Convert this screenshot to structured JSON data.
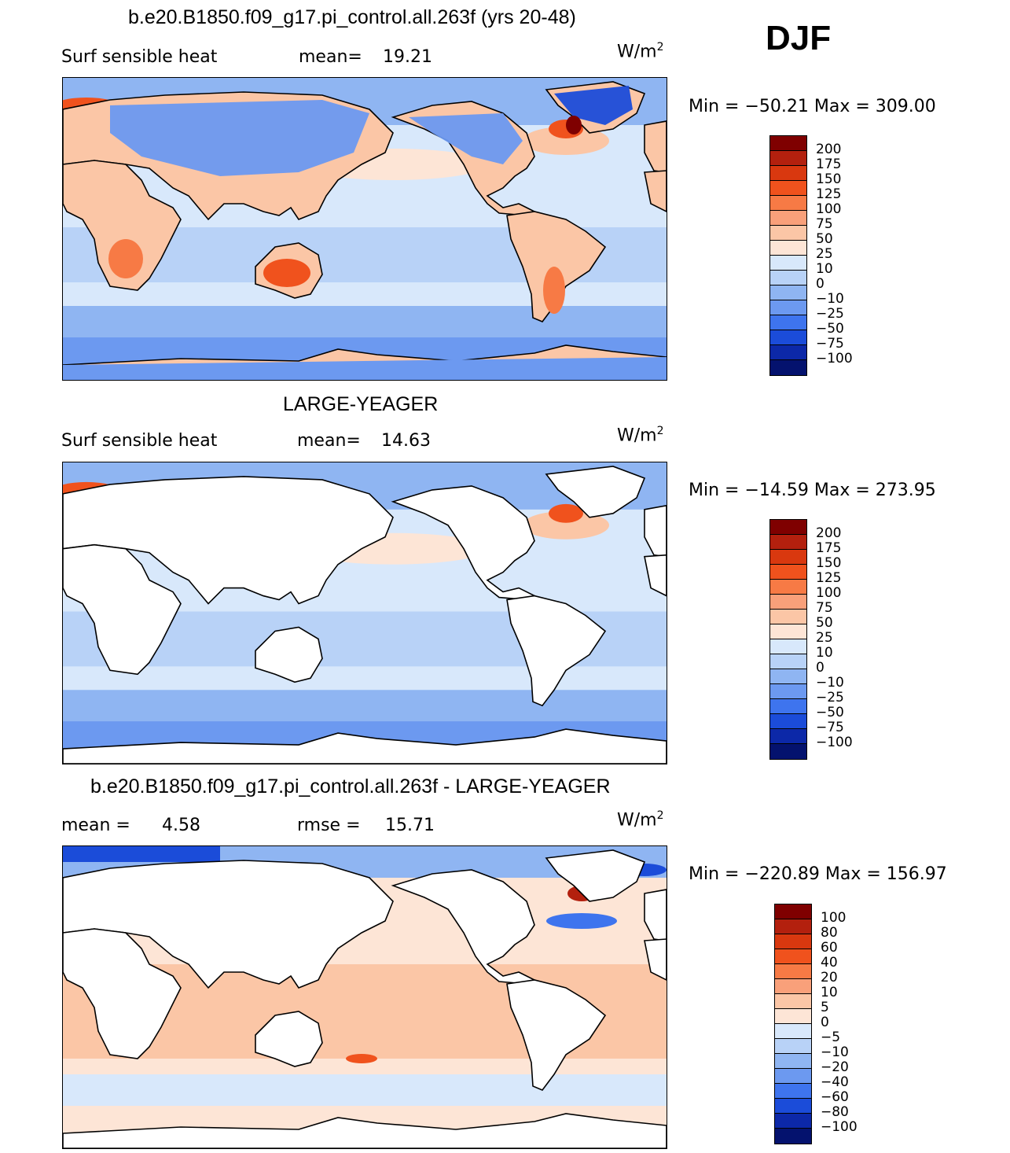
{
  "season": "DJF",
  "units_base": "W/m",
  "units_exp": "2",
  "panels": [
    {
      "title": "b.e20.B1850.f09_g17.pi_control.all.263f (yrs 20-48)",
      "left_label": "Surf sensible heat",
      "right_label": "mean=",
      "right_value": "19.21",
      "minmax": "Min = −50.21 Max = 309.00",
      "colorbar": {
        "labels": [
          "200",
          "175",
          "150",
          "125",
          "100",
          "75",
          "50",
          "25",
          "10",
          "0",
          "−10",
          "−25",
          "−50",
          "−75",
          "−100"
        ],
        "colors": [
          "#7f0000",
          "#b3200e",
          "#d9380f",
          "#f0521d",
          "#f77a45",
          "#f9a07a",
          "#fbc6a6",
          "#fde5d6",
          "#d8e8fb",
          "#b8d2f7",
          "#8fb5f2",
          "#6c99f0",
          "#3e74ee",
          "#1b4cd9",
          "#0c28a8",
          "#04126e"
        ]
      },
      "style": "field"
    },
    {
      "title": "LARGE-YEAGER",
      "left_label": "Surf sensible heat",
      "right_label": "mean=",
      "right_value": "14.63",
      "minmax": "Min = −14.59 Max = 273.95",
      "colorbar": {
        "labels": [
          "200",
          "175",
          "150",
          "125",
          "100",
          "75",
          "50",
          "25",
          "10",
          "0",
          "−10",
          "−25",
          "−50",
          "−75",
          "−100"
        ],
        "colors": [
          "#7f0000",
          "#b3200e",
          "#d9380f",
          "#f0521d",
          "#f77a45",
          "#f9a07a",
          "#fbc6a6",
          "#fde5d6",
          "#d8e8fb",
          "#b8d2f7",
          "#8fb5f2",
          "#6c99f0",
          "#3e74ee",
          "#1b4cd9",
          "#0c28a8",
          "#04126e"
        ]
      },
      "style": "ocean"
    },
    {
      "title": "b.e20.B1850.f09_g17.pi_control.all.263f - LARGE-YEAGER",
      "left_label": "mean =",
      "left_value": "4.58",
      "right_label": "rmse =",
      "right_value": "15.71",
      "minmax": "Min = −220.89 Max = 156.97",
      "colorbar": {
        "labels": [
          "100",
          "80",
          "60",
          "40",
          "20",
          "10",
          "5",
          "0",
          "−5",
          "−10",
          "−20",
          "−40",
          "−60",
          "−80",
          "−100"
        ],
        "colors": [
          "#7f0000",
          "#b3200e",
          "#d9380f",
          "#f0521d",
          "#f77a45",
          "#f9a07a",
          "#fbc6a6",
          "#fde5d6",
          "#d8e8fb",
          "#b8d2f7",
          "#8fb5f2",
          "#6c99f0",
          "#3e74ee",
          "#1b4cd9",
          "#0c28a8",
          "#04126e"
        ]
      },
      "style": "diff"
    }
  ]
}
